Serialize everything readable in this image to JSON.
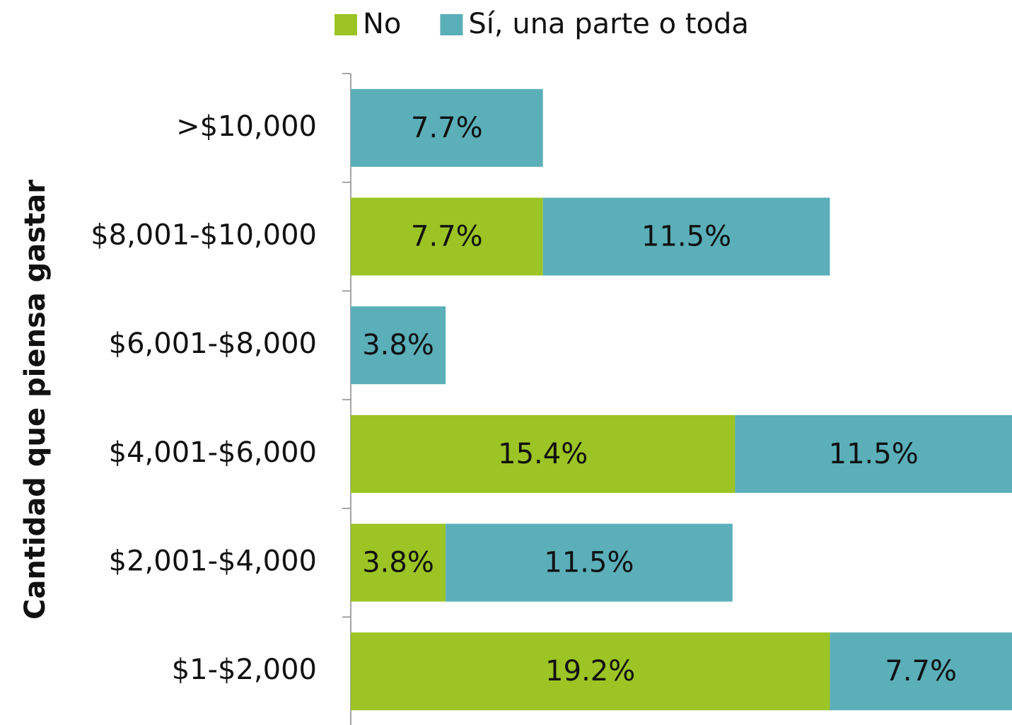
{
  "chart_data": {
    "type": "stacked-barh",
    "y_label": "Cantidad que piensa gastar",
    "categories": [
      ">$10,000",
      "$8,001-$10,000",
      "$6,001-$8,000",
      "$4,001-$6,000",
      "$2,001-$4,000",
      "$1-$2,000"
    ],
    "series": [
      {
        "name": "No",
        "color": "#9bc424",
        "values": [
          null,
          7.7,
          null,
          15.4,
          3.8,
          19.2
        ],
        "value_labels": [
          null,
          "7.7%",
          null,
          "15.4%",
          "3.8%",
          "19.2%"
        ]
      },
      {
        "name": "Sí, una parte o toda",
        "color": "#5aafb9",
        "values": [
          7.7,
          11.5,
          3.8,
          11.5,
          11.5,
          7.7
        ],
        "value_labels": [
          "7.7%",
          "11.5%",
          "3.8%",
          "11.5%",
          "11.5%",
          "7.7%"
        ]
      }
    ],
    "xlim": [
      0,
      26.5
    ],
    "legend": "top"
  }
}
